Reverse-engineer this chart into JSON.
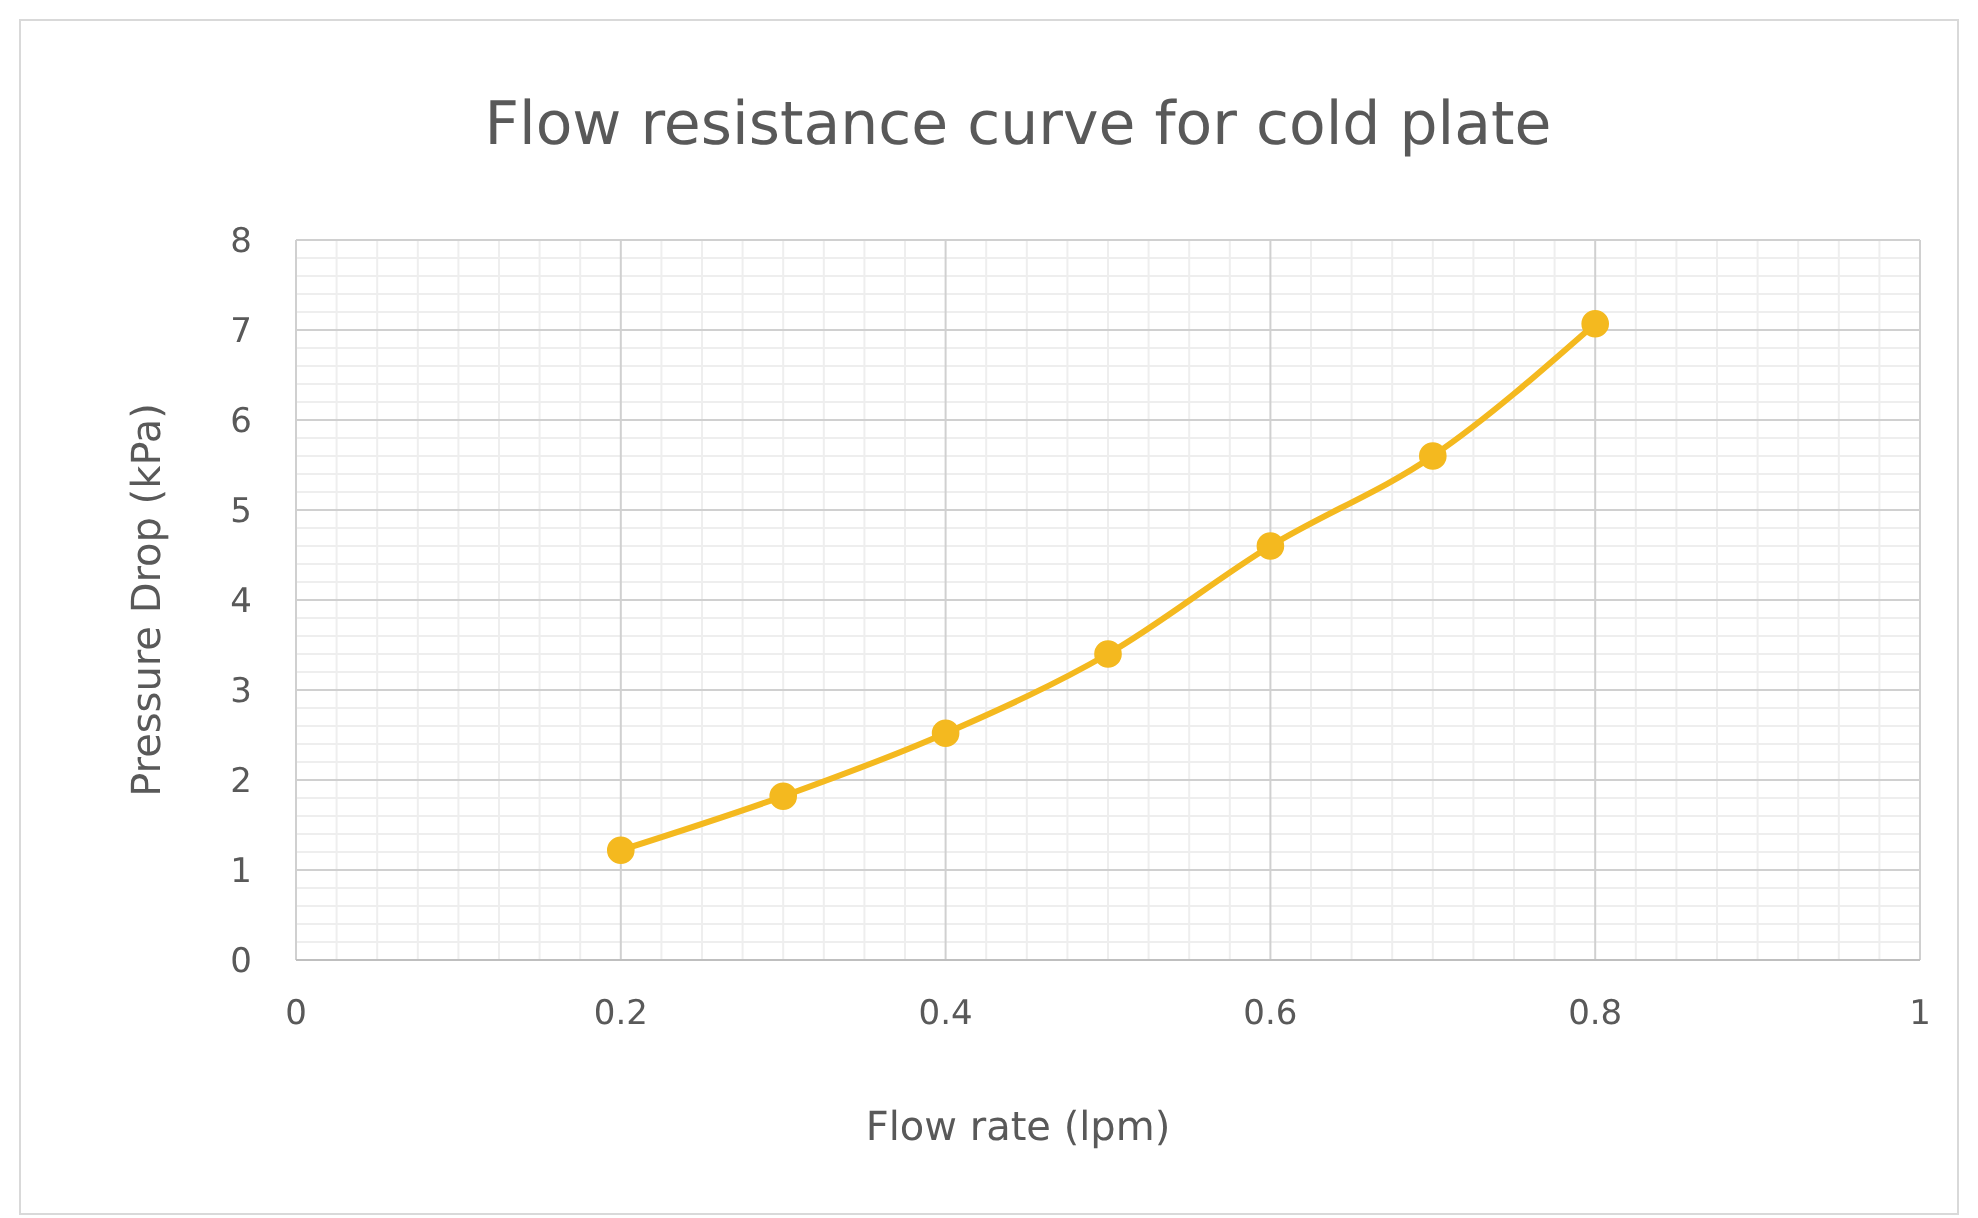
{
  "chart_data": {
    "type": "line",
    "title": "Flow resistance curve for cold plate",
    "xlabel": "Flow rate (lpm)",
    "ylabel": "Pressure Drop (kPa)",
    "x": [
      0.2,
      0.3,
      0.4,
      0.5,
      0.6,
      0.7,
      0.8
    ],
    "series": [
      {
        "color": "#f4b91f",
        "values": [
          1.22,
          1.82,
          2.52,
          3.4,
          4.6,
          5.6,
          7.07
        ]
      }
    ],
    "xlim": [
      0,
      1
    ],
    "xticks": [
      0,
      0.2,
      0.4,
      0.6,
      0.8,
      1
    ],
    "ylim": [
      0,
      8
    ],
    "yticks": [
      0,
      1,
      2,
      3,
      4,
      5,
      6,
      7,
      8
    ],
    "grid": true,
    "marker": "circle",
    "line_style": "solid"
  }
}
